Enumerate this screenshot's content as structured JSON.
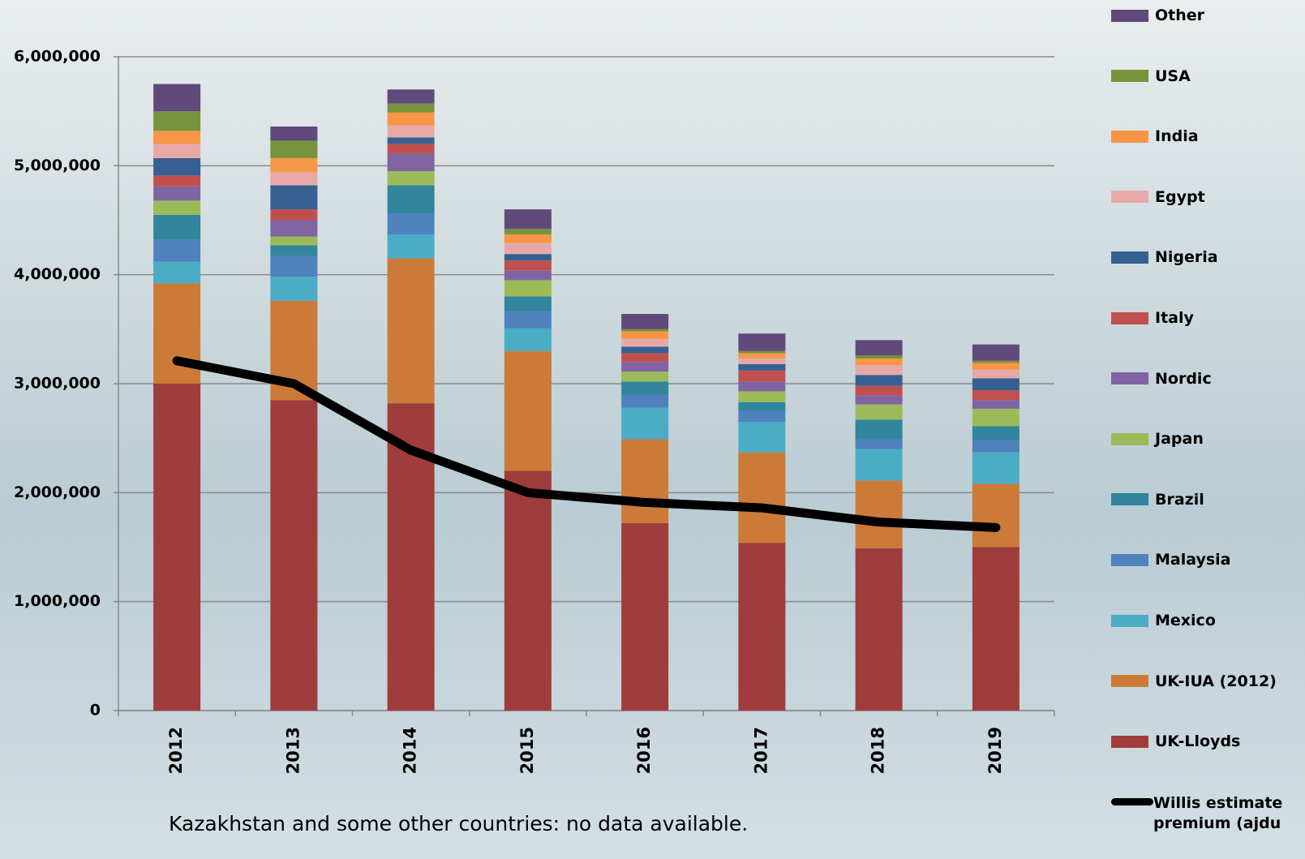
{
  "chart_data": {
    "type": "stacked-bar-line",
    "categories": [
      "2012",
      "2013",
      "2014",
      "2015",
      "2016",
      "2017",
      "2018",
      "2019"
    ],
    "series": [
      {
        "name": "UK-Lloyds",
        "color": "#9e3d3b",
        "values": [
          3000000,
          2850000,
          2820000,
          2200000,
          1720000,
          1540000,
          1490000,
          1500000
        ]
      },
      {
        "name": "UK-IUA (2012)",
        "color": "#cc7a38",
        "values": [
          920000,
          910000,
          1330000,
          1100000,
          770000,
          830000,
          620000,
          580000
        ]
      },
      {
        "name": "Mexico",
        "color": "#4bacc6",
        "values": [
          200000,
          220000,
          220000,
          210000,
          290000,
          280000,
          290000,
          290000
        ]
      },
      {
        "name": "Malaysia",
        "color": "#4f81bd",
        "values": [
          200000,
          190000,
          190000,
          150000,
          120000,
          100000,
          90000,
          110000
        ]
      },
      {
        "name": "Brazil",
        "color": "#31859c",
        "values": [
          230000,
          100000,
          260000,
          140000,
          120000,
          80000,
          180000,
          130000
        ]
      },
      {
        "name": "Japan",
        "color": "#9bbb59",
        "values": [
          130000,
          80000,
          130000,
          150000,
          90000,
          100000,
          140000,
          160000
        ]
      },
      {
        "name": "Nordic",
        "color": "#8064a2",
        "values": [
          130000,
          150000,
          160000,
          90000,
          90000,
          90000,
          80000,
          80000
        ]
      },
      {
        "name": "Italy",
        "color": "#c0504d",
        "values": [
          100000,
          100000,
          90000,
          90000,
          80000,
          100000,
          90000,
          90000
        ]
      },
      {
        "name": "Nigeria",
        "color": "#376092",
        "values": [
          160000,
          220000,
          60000,
          60000,
          60000,
          60000,
          100000,
          110000
        ]
      },
      {
        "name": "Egypt",
        "color": "#e6a9a8",
        "values": [
          130000,
          120000,
          110000,
          100000,
          70000,
          50000,
          90000,
          80000
        ]
      },
      {
        "name": "India",
        "color": "#f79646",
        "values": [
          120000,
          130000,
          120000,
          80000,
          70000,
          50000,
          60000,
          60000
        ]
      },
      {
        "name": "USA",
        "color": "#77933c",
        "values": [
          180000,
          160000,
          80000,
          50000,
          20000,
          20000,
          30000,
          20000
        ]
      },
      {
        "name": "Other",
        "color": "#604a7b",
        "values": [
          250000,
          130000,
          130000,
          180000,
          140000,
          160000,
          140000,
          150000
        ]
      }
    ],
    "line": {
      "name": "Willis estimate premium (ajdu",
      "color": "#000000",
      "values": [
        3210000,
        3000000,
        2390000,
        2000000,
        1910000,
        1860000,
        1730000,
        1680000
      ]
    },
    "ylim": [
      0,
      6000000
    ],
    "yticks": [
      0,
      {
        "value": 1000000,
        "label": "1,000,000"
      },
      {
        "value": 2000000,
        "label": "2,000,000"
      },
      {
        "value": 3000000,
        "label": "3,000,000"
      },
      {
        "value": 4000000,
        "label": "4,000,000"
      },
      {
        "value": 5000000,
        "label": "5,000,000"
      },
      {
        "value": 6000000,
        "label": "6,000,000"
      }
    ],
    "grid": true,
    "note": "Kazakhstan and some other countries: no data available."
  }
}
